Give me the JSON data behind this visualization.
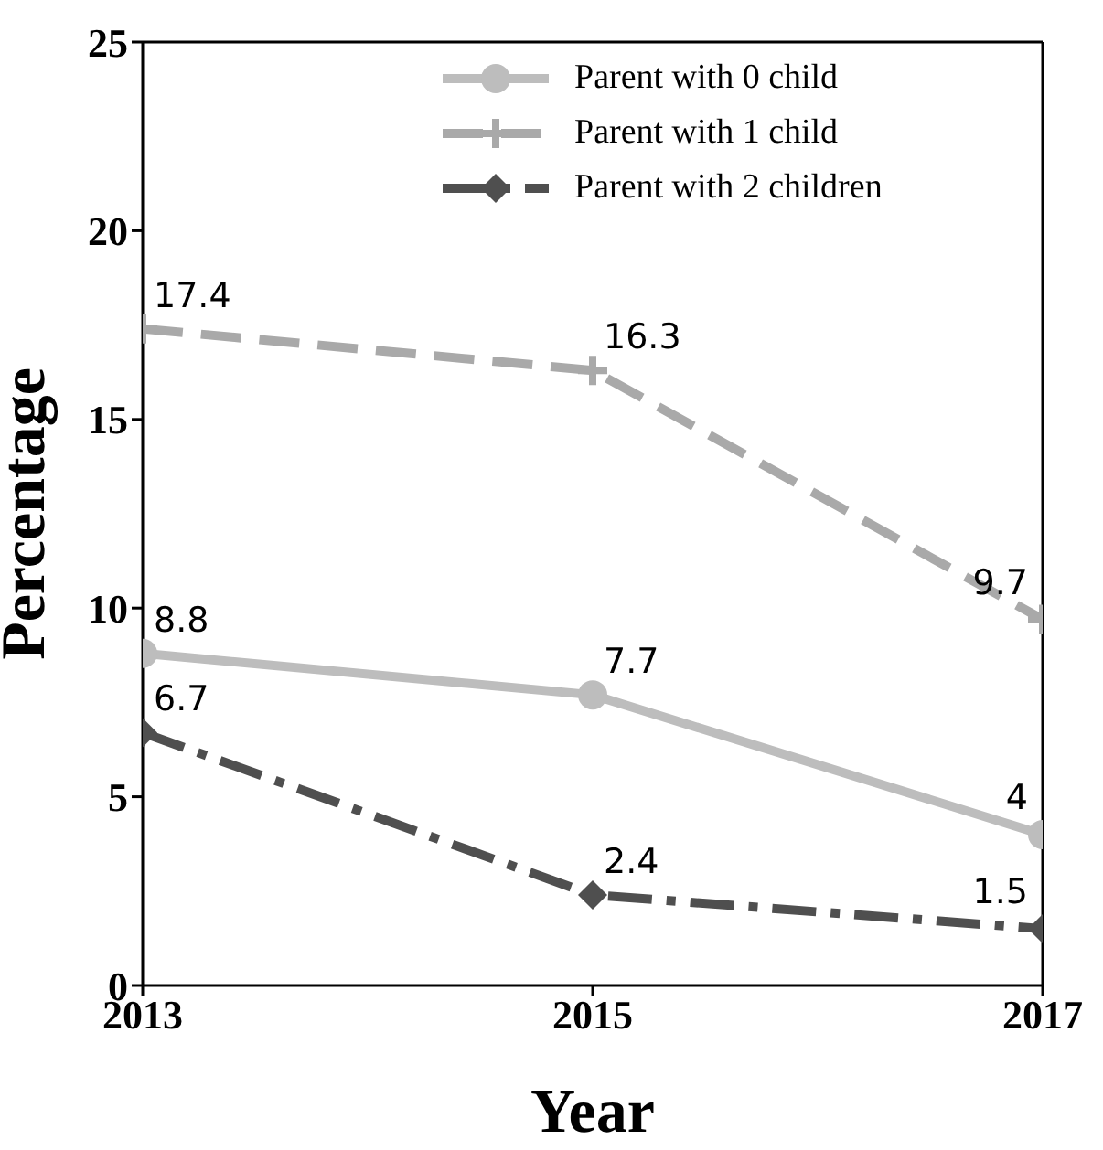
{
  "chart_data": {
    "type": "line",
    "xlabel": "Year",
    "ylabel": "Percentage",
    "x": [
      2013,
      2015,
      2017
    ],
    "series": [
      {
        "name": "Parent with 0 child",
        "color": "#bdbdbd",
        "values": [
          8.8,
          7.7,
          4
        ],
        "marker": "circle",
        "line_style": "solid"
      },
      {
        "name": "Parent with 1 child",
        "color": "#a9a9a9",
        "values": [
          17.4,
          16.3,
          9.7
        ],
        "marker": "cross",
        "line_style": "dashed"
      },
      {
        "name": "Parent with 2 children",
        "color": "#4f4f4f",
        "values": [
          6.7,
          2.4,
          1.5
        ],
        "marker": "diamond",
        "line_style": "dashdot"
      }
    ],
    "xlim": [
      2013,
      2017
    ],
    "xticks": [
      2013,
      2015,
      2017
    ],
    "ylim": [
      0,
      25
    ],
    "yticks": [
      0,
      5,
      10,
      15,
      20,
      25
    ],
    "grid": false,
    "legend": "top right",
    "data_labels": true
  }
}
